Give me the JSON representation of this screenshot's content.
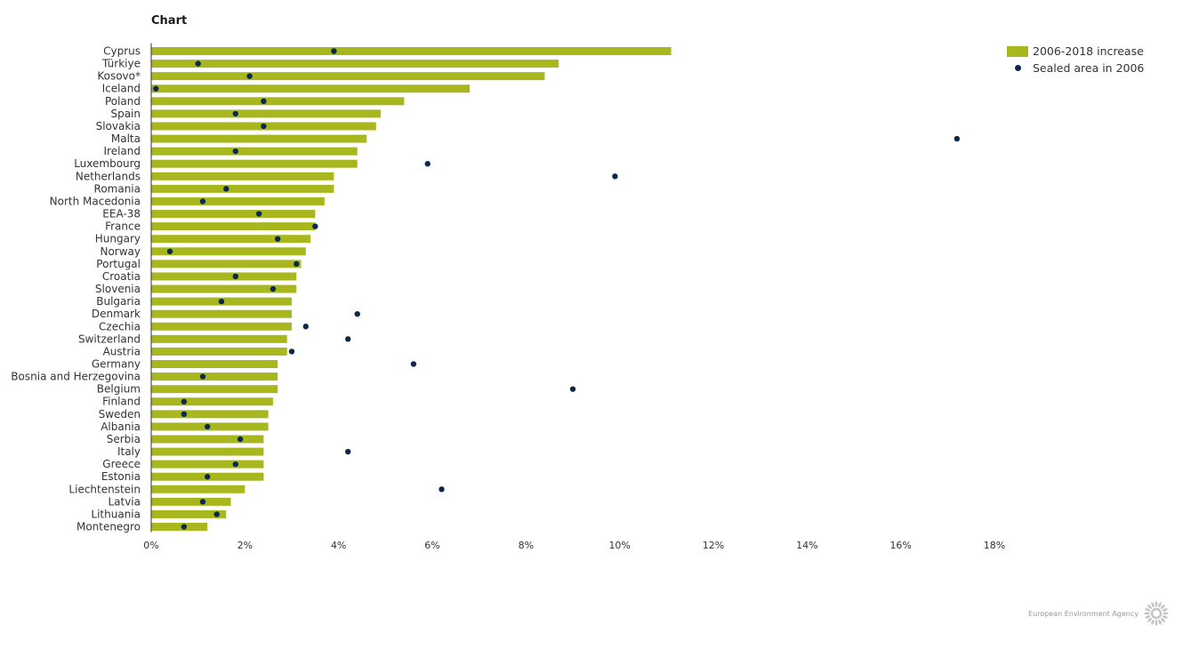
{
  "title": "Chart",
  "colors": {
    "bar": "#a9b71f",
    "dot": "#0b2a4a",
    "axis": "#333333"
  },
  "legend": {
    "items": [
      {
        "label": "2006-2018 increase",
        "kind": "bar"
      },
      {
        "label": "Sealed area in 2006",
        "kind": "dot"
      }
    ]
  },
  "footer": {
    "text": "European Environment Agency",
    "logo_icon": "eea-sun-icon"
  },
  "chart_data": {
    "type": "bar",
    "orientation": "horizontal",
    "categories": [
      "Cyprus",
      "Türkiye",
      "Kosovo*",
      "Iceland",
      "Poland",
      "Spain",
      "Slovakia",
      "Malta",
      "Ireland",
      "Luxembourg",
      "Netherlands",
      "Romania",
      "North Macedonia",
      "EEA-38",
      "France",
      "Hungary",
      "Norway",
      "Portugal",
      "Croatia",
      "Slovenia",
      "Bulgaria",
      "Denmark",
      "Czechia",
      "Switzerland",
      "Austria",
      "Germany",
      "Bosnia and Herzegovina",
      "Belgium",
      "Finland",
      "Sweden",
      "Albania",
      "Serbia",
      "Italy",
      "Greece",
      "Estonia",
      "Liechtenstein",
      "Latvia",
      "Lithuania",
      "Montenegro"
    ],
    "series": [
      {
        "name": "2006-2018 increase",
        "type": "bar",
        "values": [
          11.1,
          8.7,
          8.4,
          6.8,
          5.4,
          4.9,
          4.8,
          4.6,
          4.4,
          4.4,
          3.9,
          3.9,
          3.7,
          3.5,
          3.5,
          3.4,
          3.3,
          3.2,
          3.1,
          3.1,
          3.0,
          3.0,
          3.0,
          2.9,
          2.9,
          2.7,
          2.7,
          2.7,
          2.6,
          2.5,
          2.5,
          2.4,
          2.4,
          2.4,
          2.4,
          2.0,
          1.7,
          1.6,
          1.2
        ]
      },
      {
        "name": "Sealed area in 2006",
        "type": "scatter",
        "values": [
          3.9,
          1.0,
          2.1,
          0.1,
          2.4,
          1.8,
          2.4,
          17.2,
          1.8,
          5.9,
          9.9,
          1.6,
          1.1,
          2.3,
          3.5,
          2.7,
          0.4,
          3.1,
          1.8,
          2.6,
          1.5,
          4.4,
          3.3,
          4.2,
          3.0,
          5.6,
          1.1,
          9.0,
          0.7,
          0.7,
          1.2,
          1.9,
          4.2,
          1.8,
          1.2,
          6.2,
          1.1,
          1.4,
          0.7
        ]
      }
    ],
    "xlim": [
      0,
      18
    ],
    "xticks": [
      "0%",
      "2%",
      "4%",
      "6%",
      "8%",
      "10%",
      "12%",
      "14%",
      "16%",
      "18%"
    ],
    "xlabel": "",
    "ylabel": "",
    "legend_position": "top-right"
  }
}
